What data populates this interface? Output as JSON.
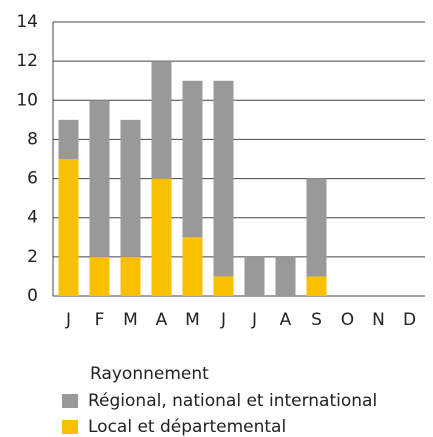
{
  "chart_data": {
    "type": "stacked_bar",
    "categories": [
      "J",
      "F",
      "M",
      "A",
      "M",
      "J",
      "J",
      "A",
      "S",
      "O",
      "N",
      "D"
    ],
    "series": [
      {
        "name": "Local et départemental",
        "color": "#f9c000",
        "values": [
          7,
          2,
          2,
          6,
          3,
          1,
          0,
          0,
          1,
          0,
          0,
          0
        ]
      },
      {
        "name": "Régional, national et international",
        "color": "#999999",
        "values": [
          2,
          8,
          7,
          6,
          8,
          10,
          2,
          2,
          5,
          0,
          0,
          0
        ]
      }
    ],
    "ylim": [
      0,
      14
    ],
    "yticks": [
      0,
      2,
      4,
      6,
      8,
      10,
      12,
      14
    ],
    "grid": true,
    "legend_title": "Rayonnement"
  }
}
